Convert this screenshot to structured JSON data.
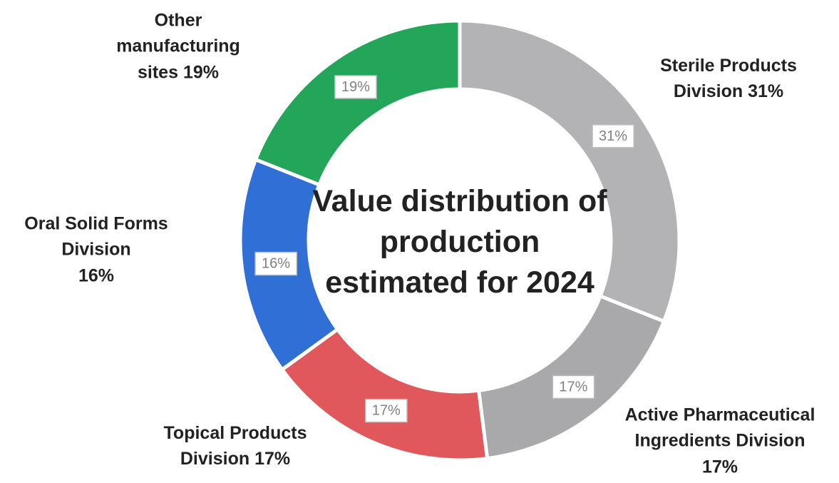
{
  "chart_data": {
    "type": "donut",
    "title": "Value distribution of production estimated for 2024",
    "categories": [
      "Sterile Products Division",
      "Active Pharmaceutical Ingredients Division",
      "Topical Products Division",
      "Oral Solid Forms Division",
      "Other manufacturing sites"
    ],
    "values": [
      31,
      17,
      17,
      16,
      19
    ],
    "value_labels": [
      "31%",
      "17%",
      "17%",
      "16%",
      "19%"
    ],
    "colors": [
      "#b3b3b5",
      "#a9a9ab",
      "#e0585c",
      "#2f6fd6",
      "#23a55a"
    ]
  }
}
